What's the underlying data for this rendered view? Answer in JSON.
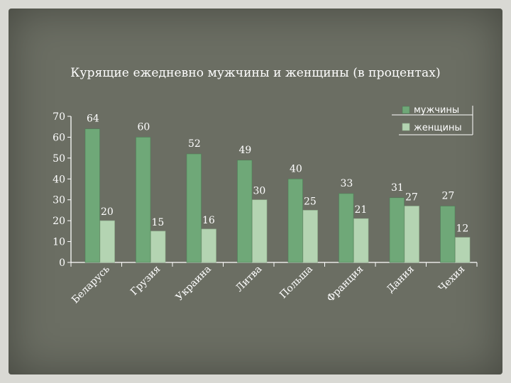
{
  "chart_data": {
    "type": "bar",
    "title": "Курящие ежедневно мужчины и женщины (в процентах)",
    "categories": [
      "Беларусь",
      "Грузия",
      "Украина",
      "Литва",
      "Польша",
      "Франция",
      "Дания",
      "Чехия"
    ],
    "series": [
      {
        "name": "мужчины",
        "values": [
          64,
          60,
          52,
          49,
          40,
          33,
          31,
          27
        ]
      },
      {
        "name": "женщины",
        "values": [
          20,
          15,
          16,
          30,
          25,
          21,
          27,
          12
        ]
      }
    ],
    "yticks": [
      "0",
      "10",
      "20",
      "30",
      "40",
      "50",
      "60",
      "70"
    ],
    "ylim": [
      0,
      70
    ],
    "legend": "top-right",
    "colors": {
      "men": "#6fa878",
      "women": "#b4d4b2",
      "axis": "#ffffff"
    }
  }
}
